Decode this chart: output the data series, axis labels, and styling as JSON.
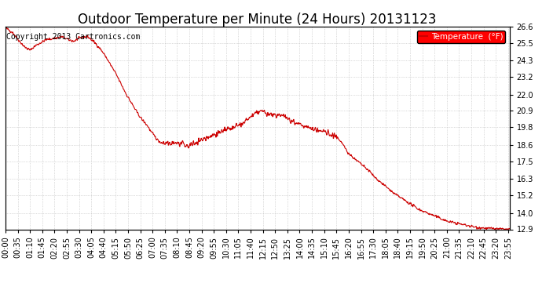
{
  "title": "Outdoor Temperature per Minute (24 Hours) 20131123",
  "copyright_text": "Copyright 2013 Cartronics.com",
  "legend_label": "Temperature  (°F)",
  "legend_bg": "#FF0000",
  "legend_text_color": "#FFFFFF",
  "ylim": [
    12.9,
    26.6
  ],
  "yticks": [
    12.9,
    14.0,
    15.2,
    16.3,
    17.5,
    18.6,
    19.8,
    20.9,
    22.0,
    23.2,
    24.3,
    25.5,
    26.6
  ],
  "xtick_labels": [
    "00:00",
    "00:35",
    "01:10",
    "01:45",
    "02:20",
    "02:55",
    "03:30",
    "04:05",
    "04:40",
    "05:15",
    "05:50",
    "06:25",
    "07:00",
    "07:35",
    "08:10",
    "08:45",
    "09:20",
    "09:55",
    "10:30",
    "11:05",
    "11:40",
    "12:15",
    "12:50",
    "13:25",
    "14:00",
    "14:35",
    "15:10",
    "15:45",
    "16:20",
    "16:55",
    "17:30",
    "18:05",
    "18:40",
    "19:15",
    "19:50",
    "20:25",
    "21:00",
    "21:35",
    "22:10",
    "22:45",
    "23:20",
    "23:55"
  ],
  "line_color": "#CC0000",
  "bg_color": "#FFFFFF",
  "grid_color": "#BBBBBB",
  "title_fontsize": 12,
  "axis_fontsize": 7,
  "copyright_fontsize": 7
}
